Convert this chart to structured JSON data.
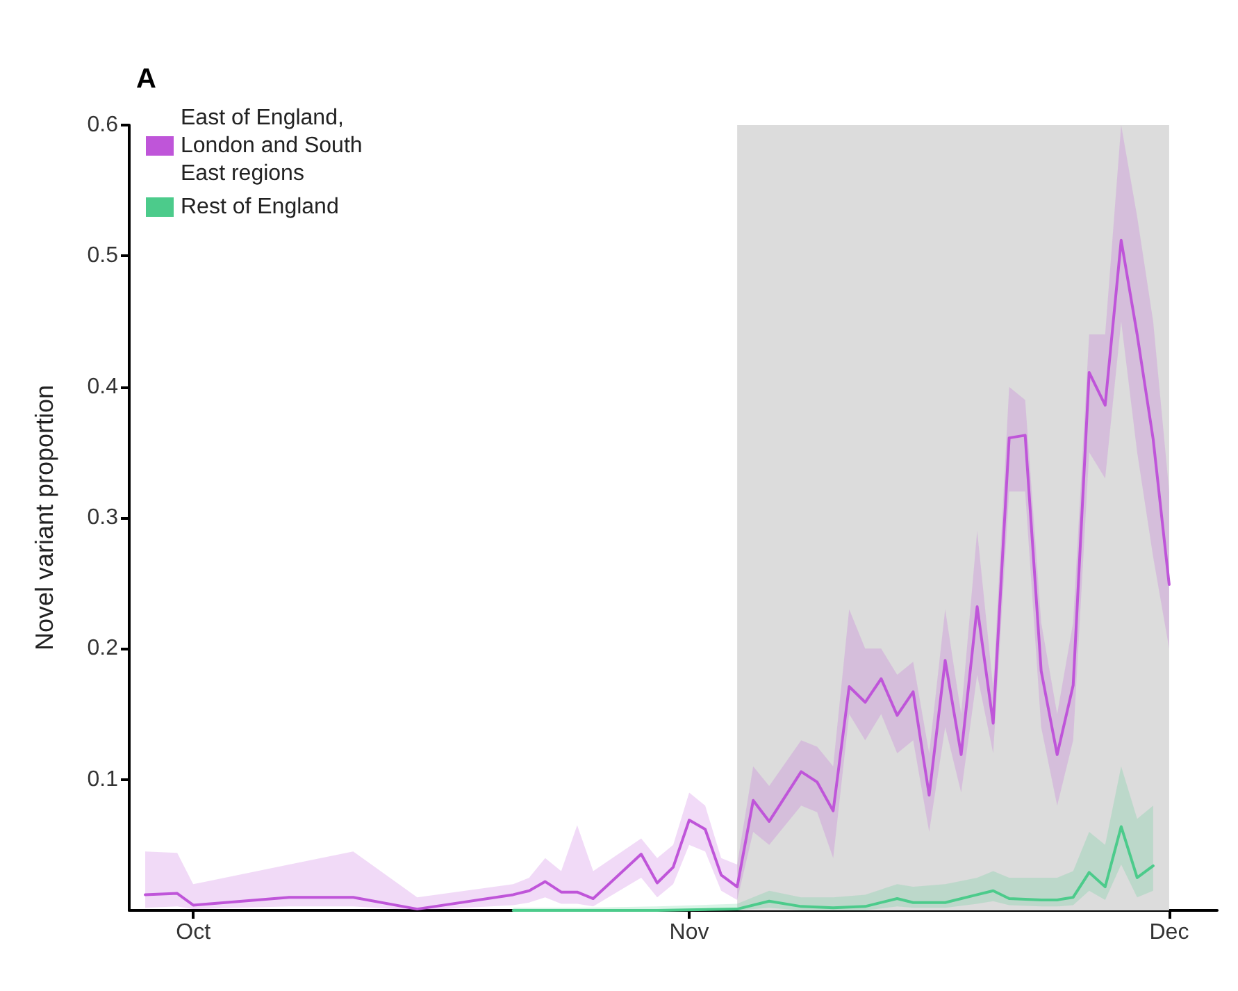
{
  "chart_data": {
    "type": "line",
    "title": "A",
    "ylabel": "Novel variant proportion",
    "xlim": [
      "--09-27",
      "--12-04"
    ],
    "xticks": [
      {
        "value": "--10-01",
        "label": "Oct"
      },
      {
        "value": "--11-01",
        "label": "Nov"
      },
      {
        "value": "--12-01",
        "label": "Dec"
      }
    ],
    "ylim": [
      0,
      0.6
    ],
    "yticks": [
      0.1,
      0.2,
      0.3,
      0.4,
      0.5,
      0.6
    ],
    "grid": false,
    "legend": "top left",
    "marker": "none",
    "line_style": "solid",
    "bands": [
      {
        "axis": "x",
        "from": "--11-04",
        "to": "--12-01",
        "color": "#dcdcdc"
      }
    ],
    "series": [
      {
        "name": "East of England, London and South East regions",
        "color": "#bf55d9",
        "x": [
          "--09-28",
          "--09-30",
          "--10-01",
          "--10-07",
          "--10-11",
          "--10-15",
          "--10-21",
          "--10-22",
          "--10-23",
          "--10-24",
          "--10-25",
          "--10-26",
          "--10-29",
          "--10-30",
          "--10-31",
          "--11-01",
          "--11-02",
          "--11-03",
          "--11-04",
          "--11-05",
          "--11-06",
          "--11-08",
          "--11-09",
          "--11-10",
          "--11-11",
          "--11-12",
          "--11-13",
          "--11-14",
          "--11-15",
          "--11-16",
          "--11-17",
          "--11-18",
          "--11-19",
          "--11-20",
          "--11-21",
          "--11-22",
          "--11-23",
          "--11-24",
          "--11-25",
          "--11-26",
          "--11-27",
          "--11-28",
          "--11-29",
          "--11-30",
          "--12-01"
        ],
        "values": [
          0.012,
          0.013,
          0.004,
          0.01,
          0.01,
          0.001,
          0.012,
          0.015,
          0.022,
          0.014,
          0.014,
          0.009,
          0.043,
          0.021,
          0.033,
          0.069,
          0.062,
          0.027,
          0.018,
          0.084,
          0.068,
          0.106,
          0.098,
          0.076,
          0.171,
          0.159,
          0.177,
          0.149,
          0.167,
          0.088,
          0.191,
          0.119,
          0.232,
          0.143,
          0.361,
          0.363,
          0.183,
          0.119,
          0.172,
          0.411,
          0.386,
          0.512,
          0.44,
          0.36,
          0.249
        ],
        "lower": [
          0.002,
          0.003,
          0.001,
          0.003,
          0.003,
          0,
          0.004,
          0.006,
          0.01,
          0.005,
          0.005,
          0.003,
          0.025,
          0.01,
          0.02,
          0.05,
          0.045,
          0.015,
          0.008,
          0.06,
          0.05,
          0.08,
          0.075,
          0.04,
          0.15,
          0.13,
          0.15,
          0.12,
          0.13,
          0.06,
          0.14,
          0.09,
          0.18,
          0.12,
          0.32,
          0.32,
          0.14,
          0.08,
          0.13,
          0.35,
          0.33,
          0.45,
          0.35,
          0.27,
          0.2
        ],
        "upper": [
          0.045,
          0.044,
          0.02,
          0.035,
          0.045,
          0.01,
          0.02,
          0.025,
          0.04,
          0.03,
          0.065,
          0.03,
          0.055,
          0.04,
          0.05,
          0.09,
          0.08,
          0.04,
          0.035,
          0.11,
          0.095,
          0.13,
          0.125,
          0.11,
          0.23,
          0.2,
          0.2,
          0.18,
          0.19,
          0.12,
          0.23,
          0.15,
          0.29,
          0.17,
          0.4,
          0.39,
          0.22,
          0.15,
          0.22,
          0.44,
          0.44,
          0.6,
          0.53,
          0.45,
          0.32
        ]
      },
      {
        "name": "Rest of England",
        "color": "#4ccb8b",
        "x": [
          "--10-21",
          "--10-25",
          "--10-30",
          "--11-04",
          "--11-06",
          "--11-08",
          "--11-10",
          "--11-12",
          "--11-14",
          "--11-15",
          "--11-17",
          "--11-19",
          "--11-20",
          "--11-21",
          "--11-23",
          "--11-24",
          "--11-25",
          "--11-26",
          "--11-27",
          "--11-28",
          "--11-29",
          "--11-30"
        ],
        "values": [
          0,
          0,
          0,
          0.001,
          0.007,
          0.003,
          0.002,
          0.003,
          0.009,
          0.006,
          0.006,
          0.012,
          0.015,
          0.009,
          0.008,
          0.008,
          0.01,
          0.029,
          0.018,
          0.064,
          0.025,
          0.034
        ],
        "lower": [
          0,
          0,
          0,
          0,
          0.002,
          0,
          0,
          0,
          0.003,
          0.002,
          0.002,
          0.005,
          0.007,
          0.004,
          0.003,
          0.003,
          0.004,
          0.015,
          0.008,
          0.035,
          0.01,
          0.015
        ],
        "upper": [
          0.002,
          0.002,
          0.003,
          0.005,
          0.015,
          0.01,
          0.01,
          0.012,
          0.02,
          0.018,
          0.02,
          0.025,
          0.03,
          0.025,
          0.025,
          0.025,
          0.03,
          0.06,
          0.05,
          0.11,
          0.07,
          0.08
        ]
      }
    ]
  }
}
